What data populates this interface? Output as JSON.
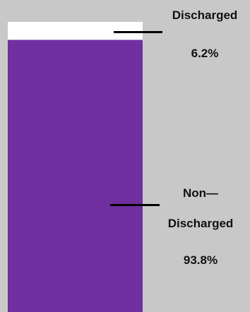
{
  "chart_data": {
    "type": "bar",
    "stacked": true,
    "ylim": [
      0,
      100
    ],
    "segments": [
      {
        "category": "Discharged",
        "label_line1": "Discharged",
        "label_line2": "",
        "value": 6.2,
        "value_label": "6.2%",
        "color": "#ffffff"
      },
      {
        "category": "Non-Discharged",
        "label_line1": "Non—",
        "label_line2": "Discharged",
        "value": 93.8,
        "value_label": "93.8%",
        "color": "#7030a0"
      }
    ]
  },
  "colors": {
    "background": "#c8c8c8",
    "leader_line": "#000000"
  }
}
